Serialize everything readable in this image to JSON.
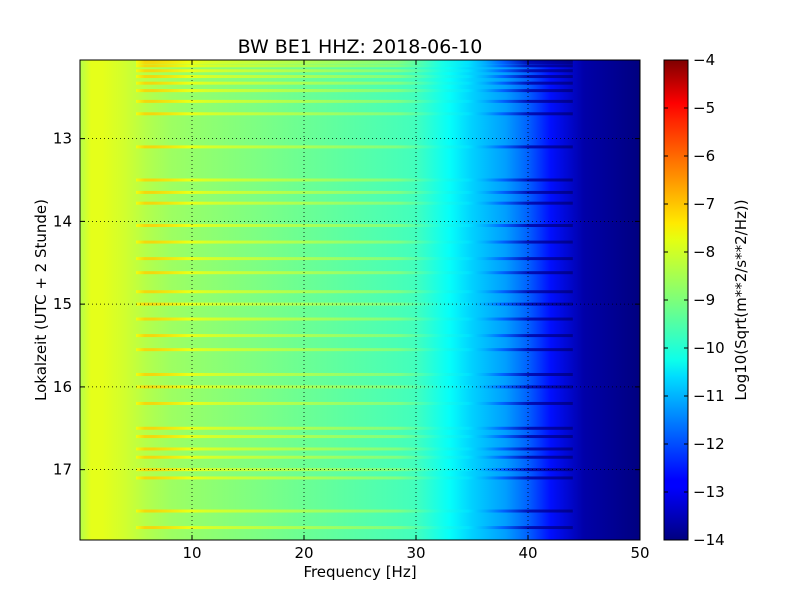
{
  "chart_data": {
    "type": "heatmap",
    "title": "BW BE1 HHZ: 2018-06-10",
    "xlabel": "Frequency [Hz]",
    "ylabel": "Lokalzeit (UTC + 2 Stunde)",
    "xlim": [
      0,
      50
    ],
    "ylim": [
      12.05,
      17.85
    ],
    "y_inverted": true,
    "x_ticks": [
      10,
      20,
      30,
      40,
      50
    ],
    "y_ticks": [
      13,
      14,
      15,
      16,
      17
    ],
    "grid": true,
    "colorbar": {
      "label": "Log10(Sqrt(m**2/s**2/Hz))",
      "colormap": "jet",
      "range": [
        -14,
        -4
      ],
      "ticks": [
        -4,
        -5,
        -6,
        -7,
        -8,
        -9,
        -10,
        -11,
        -12,
        -13,
        -14
      ]
    },
    "spectrum_profile": {
      "frequency_hz": [
        0,
        1,
        2,
        3,
        4,
        6,
        8,
        10,
        15,
        20,
        25,
        30,
        33,
        35,
        38,
        40,
        42,
        45,
        50
      ],
      "value": [
        -8.5,
        -8.0,
        -8.0,
        -8.1,
        -8.2,
        -8.5,
        -8.7,
        -8.8,
        -9.0,
        -9.2,
        -9.4,
        -9.6,
        -10.2,
        -10.7,
        -11.2,
        -11.8,
        -12.6,
        -13.6,
        -14.0
      ]
    },
    "bright_lines_hours": [
      12.05,
      12.08,
      12.12,
      12.18,
      12.25,
      12.33,
      12.42,
      12.55,
      12.7,
      13.1,
      13.5,
      13.65,
      13.78,
      14.05,
      14.25,
      14.45,
      14.62,
      14.85,
      15.0,
      15.18,
      15.38,
      15.55,
      15.85,
      16.0,
      16.2,
      16.5,
      16.6,
      16.75,
      16.85,
      17.0,
      17.1,
      17.5,
      17.7
    ]
  }
}
